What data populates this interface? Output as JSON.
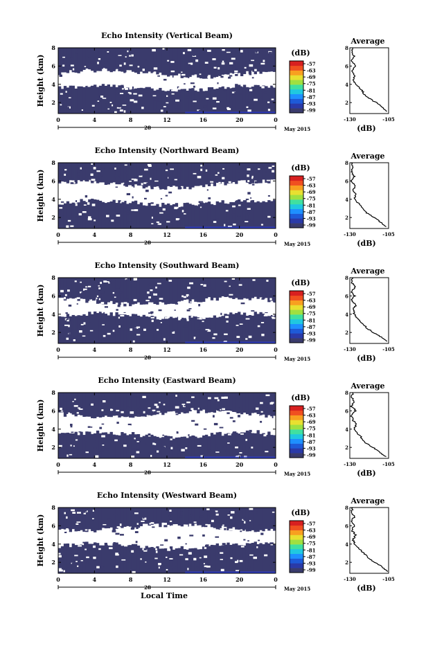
{
  "figure": {
    "ylabel": "Height (km)",
    "xlabel": "Local Time",
    "date_label": "May 2015",
    "day_label": "28",
    "unit_label": "(dB)",
    "avg_title": "Average",
    "avg_xlabel": "(dB)"
  },
  "colors": {
    "echo": "#3a3b6c",
    "background": "#ffffff",
    "low_band": "#2f40d8",
    "colorbar": [
      "#3a3b6c",
      "#2a3aa8",
      "#1e5ad8",
      "#1e90ff",
      "#20c8e0",
      "#40e0a0",
      "#a0e040",
      "#e8e030",
      "#f8a020",
      "#f05020",
      "#d82020"
    ]
  },
  "chart_data": [
    {
      "type": "heatmap",
      "title": "Echo Intensity (Vertical Beam)",
      "x_ticks": [
        "0",
        "4",
        "8",
        "12",
        "16",
        "20",
        "0"
      ],
      "y_ticks": [
        "2",
        "4",
        "6",
        "8"
      ],
      "xlim": [
        0,
        24
      ],
      "ylim": [
        0.8,
        8
      ],
      "colorbar_ticks": [
        "-57",
        "-63",
        "-69",
        "-75",
        "-81",
        "-87",
        "-93",
        "-99"
      ],
      "echo_bands": [
        {
          "from_km": 0.8,
          "to_km": 3.6,
          "t_start": 0,
          "t_end": 24
        },
        {
          "from_km": 5.2,
          "to_km": 8.0,
          "t_start": 0,
          "t_end": 24
        }
      ],
      "average": {
        "title": "Average",
        "xlim": [
          -130,
          -105
        ],
        "x_ticks": [
          "-130",
          "-105"
        ],
        "y_ticks": [
          "2",
          "4",
          "6",
          "8"
        ],
        "profile": [
          [
            -106,
            1.0
          ],
          [
            -109,
            1.5
          ],
          [
            -113,
            2.0
          ],
          [
            -118,
            2.5
          ],
          [
            -121,
            3.0
          ],
          [
            -123,
            3.5
          ],
          [
            -126,
            4.0
          ],
          [
            -128,
            4.5
          ],
          [
            -127,
            5.0
          ],
          [
            -129,
            5.5
          ],
          [
            -126,
            6.0
          ],
          [
            -129,
            6.5
          ],
          [
            -127,
            7.0
          ],
          [
            -129,
            7.5
          ],
          [
            -128,
            8.0
          ]
        ]
      }
    },
    {
      "type": "heatmap",
      "title": "Echo Intensity (Northward Beam)",
      "x_ticks": [
        "0",
        "4",
        "8",
        "12",
        "16",
        "20",
        "0"
      ],
      "y_ticks": [
        "2",
        "4",
        "6",
        "8"
      ],
      "xlim": [
        0,
        24
      ],
      "ylim": [
        0.8,
        8
      ],
      "colorbar_ticks": [
        "-57",
        "-63",
        "-69",
        "-75",
        "-81",
        "-87",
        "-93",
        "-99"
      ],
      "echo_bands": [
        {
          "from_km": 0.8,
          "to_km": 3.6,
          "t_start": 0,
          "t_end": 24
        },
        {
          "from_km": 5.6,
          "to_km": 8.0,
          "t_start": 0,
          "t_end": 24
        }
      ],
      "average": {
        "title": "Average",
        "xlim": [
          -130,
          -105
        ],
        "x_ticks": [
          "-130",
          "-105"
        ],
        "y_ticks": [
          "2",
          "4",
          "6",
          "8"
        ],
        "profile": [
          [
            -107,
            1.0
          ],
          [
            -110,
            1.5
          ],
          [
            -114,
            2.0
          ],
          [
            -119,
            2.5
          ],
          [
            -122,
            3.0
          ],
          [
            -124,
            3.5
          ],
          [
            -127,
            4.0
          ],
          [
            -126,
            4.5
          ],
          [
            -128,
            5.0
          ],
          [
            -126,
            5.5
          ],
          [
            -129,
            6.0
          ],
          [
            -127,
            6.5
          ],
          [
            -129,
            7.0
          ],
          [
            -128,
            7.5
          ],
          [
            -129,
            8.0
          ]
        ]
      }
    },
    {
      "type": "heatmap",
      "title": "Echo Intensity (Southward Beam)",
      "x_ticks": [
        "0",
        "4",
        "8",
        "12",
        "16",
        "20",
        "0"
      ],
      "y_ticks": [
        "2",
        "4",
        "6",
        "8"
      ],
      "xlim": [
        0,
        24
      ],
      "ylim": [
        0.8,
        8
      ],
      "colorbar_ticks": [
        "-57",
        "-63",
        "-69",
        "-75",
        "-81",
        "-87",
        "-93",
        "-99"
      ],
      "echo_bands": [
        {
          "from_km": 0.8,
          "to_km": 3.8,
          "t_start": 0,
          "t_end": 24
        },
        {
          "from_km": 5.4,
          "to_km": 8.0,
          "t_start": 0,
          "t_end": 24
        }
      ],
      "average": {
        "title": "Average",
        "xlim": [
          -130,
          -105
        ],
        "x_ticks": [
          "-130",
          "-105"
        ],
        "y_ticks": [
          "2",
          "4",
          "6",
          "8"
        ],
        "profile": [
          [
            -106,
            1.0
          ],
          [
            -110,
            1.5
          ],
          [
            -115,
            2.0
          ],
          [
            -119,
            2.5
          ],
          [
            -122,
            3.0
          ],
          [
            -125,
            3.5
          ],
          [
            -127,
            4.0
          ],
          [
            -128,
            4.5
          ],
          [
            -126,
            5.0
          ],
          [
            -129,
            5.5
          ],
          [
            -127,
            6.0
          ],
          [
            -129,
            6.5
          ],
          [
            -126,
            7.0
          ],
          [
            -129,
            7.5
          ],
          [
            -128,
            8.0
          ]
        ]
      }
    },
    {
      "type": "heatmap",
      "title": "Echo Intensity (Eastward Beam)",
      "x_ticks": [
        "0",
        "4",
        "8",
        "12",
        "16",
        "20",
        "0"
      ],
      "y_ticks": [
        "2",
        "4",
        "6",
        "8"
      ],
      "xlim": [
        0,
        24
      ],
      "ylim": [
        0.8,
        8
      ],
      "colorbar_ticks": [
        "-57",
        "-63",
        "-69",
        "-75",
        "-81",
        "-87",
        "-93",
        "-99"
      ],
      "echo_bands": [
        {
          "from_km": 0.8,
          "to_km": 3.4,
          "t_start": 0,
          "t_end": 24
        },
        {
          "from_km": 5.6,
          "to_km": 8.0,
          "t_start": 0,
          "t_end": 24
        }
      ],
      "average": {
        "title": "Average",
        "xlim": [
          -130,
          -105
        ],
        "x_ticks": [
          "-130",
          "-105"
        ],
        "y_ticks": [
          "2",
          "4",
          "6",
          "8"
        ],
        "profile": [
          [
            -107,
            1.0
          ],
          [
            -111,
            1.5
          ],
          [
            -115,
            2.0
          ],
          [
            -120,
            2.5
          ],
          [
            -122,
            3.0
          ],
          [
            -125,
            3.5
          ],
          [
            -127,
            4.0
          ],
          [
            -126,
            4.5
          ],
          [
            -128,
            5.0
          ],
          [
            -129,
            5.5
          ],
          [
            -126,
            6.0
          ],
          [
            -129,
            6.5
          ],
          [
            -127,
            7.0
          ],
          [
            -129,
            7.5
          ],
          [
            -128,
            8.0
          ]
        ]
      }
    },
    {
      "type": "heatmap",
      "title": "Echo Intensity (Westward Beam)",
      "x_ticks": [
        "0",
        "4",
        "8",
        "12",
        "16",
        "20",
        "0"
      ],
      "y_ticks": [
        "2",
        "4",
        "6",
        "8"
      ],
      "xlim": [
        0,
        24
      ],
      "ylim": [
        0.8,
        8
      ],
      "colorbar_ticks": [
        "-57",
        "-63",
        "-69",
        "-75",
        "-81",
        "-87",
        "-93",
        "-99"
      ],
      "echo_bands": [
        {
          "from_km": 0.8,
          "to_km": 3.8,
          "t_start": 0,
          "t_end": 24
        },
        {
          "from_km": 5.8,
          "to_km": 8.0,
          "t_start": 0,
          "t_end": 24
        }
      ],
      "average": {
        "title": "Average",
        "xlim": [
          -130,
          -105
        ],
        "x_ticks": [
          "-130",
          "-105"
        ],
        "y_ticks": [
          "2",
          "4",
          "6",
          "8"
        ],
        "profile": [
          [
            -106,
            1.0
          ],
          [
            -109,
            1.5
          ],
          [
            -114,
            2.0
          ],
          [
            -118,
            2.5
          ],
          [
            -121,
            3.0
          ],
          [
            -124,
            3.5
          ],
          [
            -127,
            4.0
          ],
          [
            -128,
            4.5
          ],
          [
            -126,
            5.0
          ],
          [
            -129,
            5.5
          ],
          [
            -127,
            6.0
          ],
          [
            -129,
            6.5
          ],
          [
            -127,
            7.0
          ],
          [
            -129,
            7.5
          ],
          [
            -128,
            8.0
          ]
        ]
      }
    }
  ]
}
